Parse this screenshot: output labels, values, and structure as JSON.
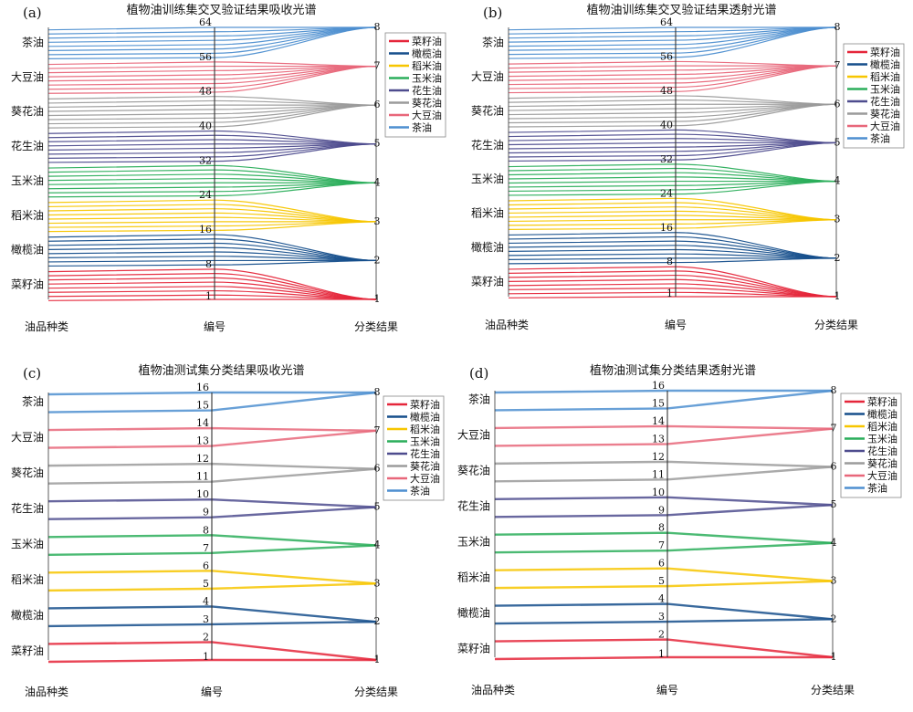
{
  "common": {
    "categories": [
      "菜籽油",
      "橄榄油",
      "稻米油",
      "玉米油",
      "花生油",
      "葵花油",
      "大豆油",
      "茶油"
    ],
    "colors": [
      "#e5263a",
      "#164f8c",
      "#f7c600",
      "#2bae5b",
      "#4e4c8e",
      "#9b9b9b",
      "#e8677a",
      "#4e8fd0"
    ],
    "axis_labels": [
      "油品种类",
      "编号",
      "分类结果"
    ]
  },
  "chart_data": [
    {
      "type": "parallel_coordinates",
      "panel_label": "(a)",
      "title": "植物油训练集交叉验证结果吸收光谱",
      "axes": [
        "油品种类",
        "编号",
        "分类结果"
      ],
      "samples_per_class": 8,
      "id_tick_labels": [
        "1",
        "8",
        "16",
        "24",
        "32",
        "40",
        "48",
        "56",
        "64"
      ],
      "class_tick_labels": [
        "1",
        "2",
        "3",
        "4",
        "5",
        "6",
        "7",
        "8"
      ],
      "legend": [
        "菜籽油",
        "橄榄油",
        "稻米油",
        "玉米油",
        "花生油",
        "葵花油",
        "大豆油",
        "茶油"
      ],
      "predicted_class": [
        1,
        2,
        3,
        4,
        5,
        6,
        7,
        8
      ]
    },
    {
      "type": "parallel_coordinates",
      "panel_label": "(b)",
      "title": "植物油训练集交叉验证结果透射光谱",
      "axes": [
        "油品种类",
        "编号",
        "分类结果"
      ],
      "samples_per_class": 8,
      "id_tick_labels": [
        "1",
        "8",
        "16",
        "24",
        "32",
        "40",
        "48",
        "56",
        "64"
      ],
      "class_tick_labels": [
        "1",
        "2",
        "3",
        "4",
        "5",
        "6",
        "7",
        "8"
      ],
      "legend": [
        "菜籽油",
        "橄榄油",
        "稻米油",
        "玉米油",
        "花生油",
        "葵花油",
        "大豆油",
        "茶油"
      ],
      "predicted_class": [
        1,
        2,
        3,
        4,
        5,
        6,
        7,
        8
      ]
    },
    {
      "type": "parallel_coordinates",
      "panel_label": "(c)",
      "title": "植物油测试集分类结果吸收光谱",
      "axes": [
        "油品种类",
        "编号",
        "分类结果"
      ],
      "samples_per_class": 2,
      "id_tick_labels": [
        "1",
        "2",
        "3",
        "4",
        "5",
        "6",
        "7",
        "8",
        "9",
        "10",
        "11",
        "12",
        "13",
        "14",
        "15",
        "16"
      ],
      "class_tick_labels": [
        "1",
        "2",
        "3",
        "4",
        "5",
        "6",
        "7",
        "8"
      ],
      "legend": [
        "菜籽油",
        "橄榄油",
        "稻米油",
        "玉米油",
        "花生油",
        "葵花油",
        "大豆油",
        "茶油"
      ],
      "predicted_class": [
        1,
        2,
        3,
        4,
        5,
        6,
        7,
        8
      ]
    },
    {
      "type": "parallel_coordinates",
      "panel_label": "(d)",
      "title": "植物油测试集分类结果透射光谱",
      "axes": [
        "油品种类",
        "编号",
        "分类结果"
      ],
      "samples_per_class": 2,
      "id_tick_labels": [
        "1",
        "2",
        "3",
        "4",
        "5",
        "6",
        "7",
        "8",
        "9",
        "10",
        "11",
        "12",
        "13",
        "14",
        "15",
        "16"
      ],
      "class_tick_labels": [
        "1",
        "2",
        "3",
        "4",
        "5",
        "6",
        "7",
        "8"
      ],
      "legend": [
        "菜籽油",
        "橄榄油",
        "稻米油",
        "玉米油",
        "花生油",
        "葵花油",
        "大豆油",
        "茶油"
      ],
      "predicted_class": [
        1,
        2,
        3,
        4,
        5,
        6,
        7,
        8
      ]
    }
  ]
}
